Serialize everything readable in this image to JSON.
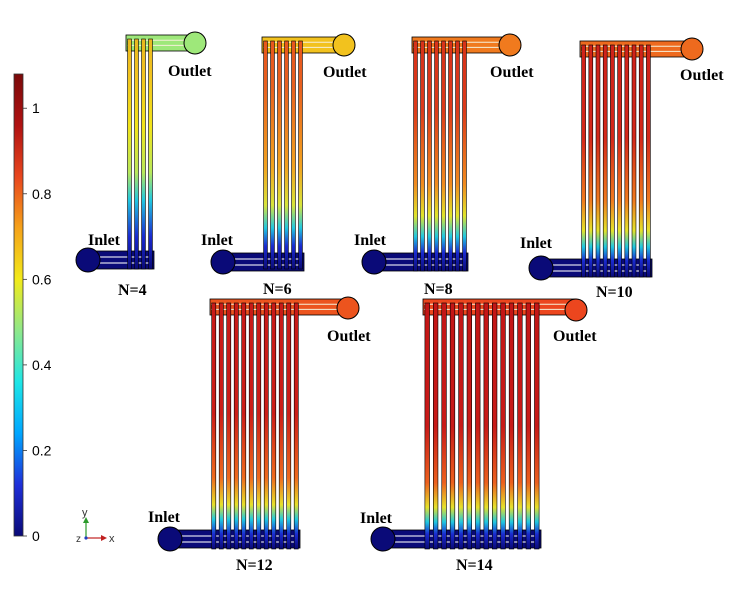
{
  "colorbar": {
    "ticks": [
      "0",
      "0.2",
      "0.4",
      "0.6",
      "0.8",
      "1"
    ],
    "tick_values": [
      0,
      0.2,
      0.4,
      0.6,
      0.8,
      1.0
    ],
    "range": [
      0,
      1.08
    ],
    "colors": [
      "#0a0a78",
      "#1f2fd9",
      "#00a6ff",
      "#1ee6e6",
      "#8fe88a",
      "#f2ea1a",
      "#f5a21a",
      "#e8461e",
      "#b01212",
      "#7a0a0a"
    ]
  },
  "axes_triad": {
    "y": "y",
    "z": "z",
    "x": "x"
  },
  "designs": [
    {
      "label": "N=4",
      "channels": 4,
      "inlet": "Inlet",
      "outlet": "Outlet",
      "outlet_color": "#9ee87a"
    },
    {
      "label": "N=6",
      "channels": 6,
      "inlet": "Inlet",
      "outlet": "Outlet",
      "outlet_color": "#f2c21e"
    },
    {
      "label": "N=8",
      "channels": 8,
      "inlet": "Inlet",
      "outlet": "Outlet",
      "outlet_color": "#f07a1e"
    },
    {
      "label": "N=10",
      "channels": 10,
      "inlet": "Inlet",
      "outlet": "Outlet",
      "outlet_color": "#ee6a1e"
    },
    {
      "label": "N=12",
      "channels": 12,
      "inlet": "Inlet",
      "outlet": "Outlet",
      "outlet_color": "#ec541e"
    },
    {
      "label": "N=14",
      "channels": 14,
      "inlet": "Inlet",
      "outlet": "Outlet",
      "outlet_color": "#ec461e"
    }
  ]
}
